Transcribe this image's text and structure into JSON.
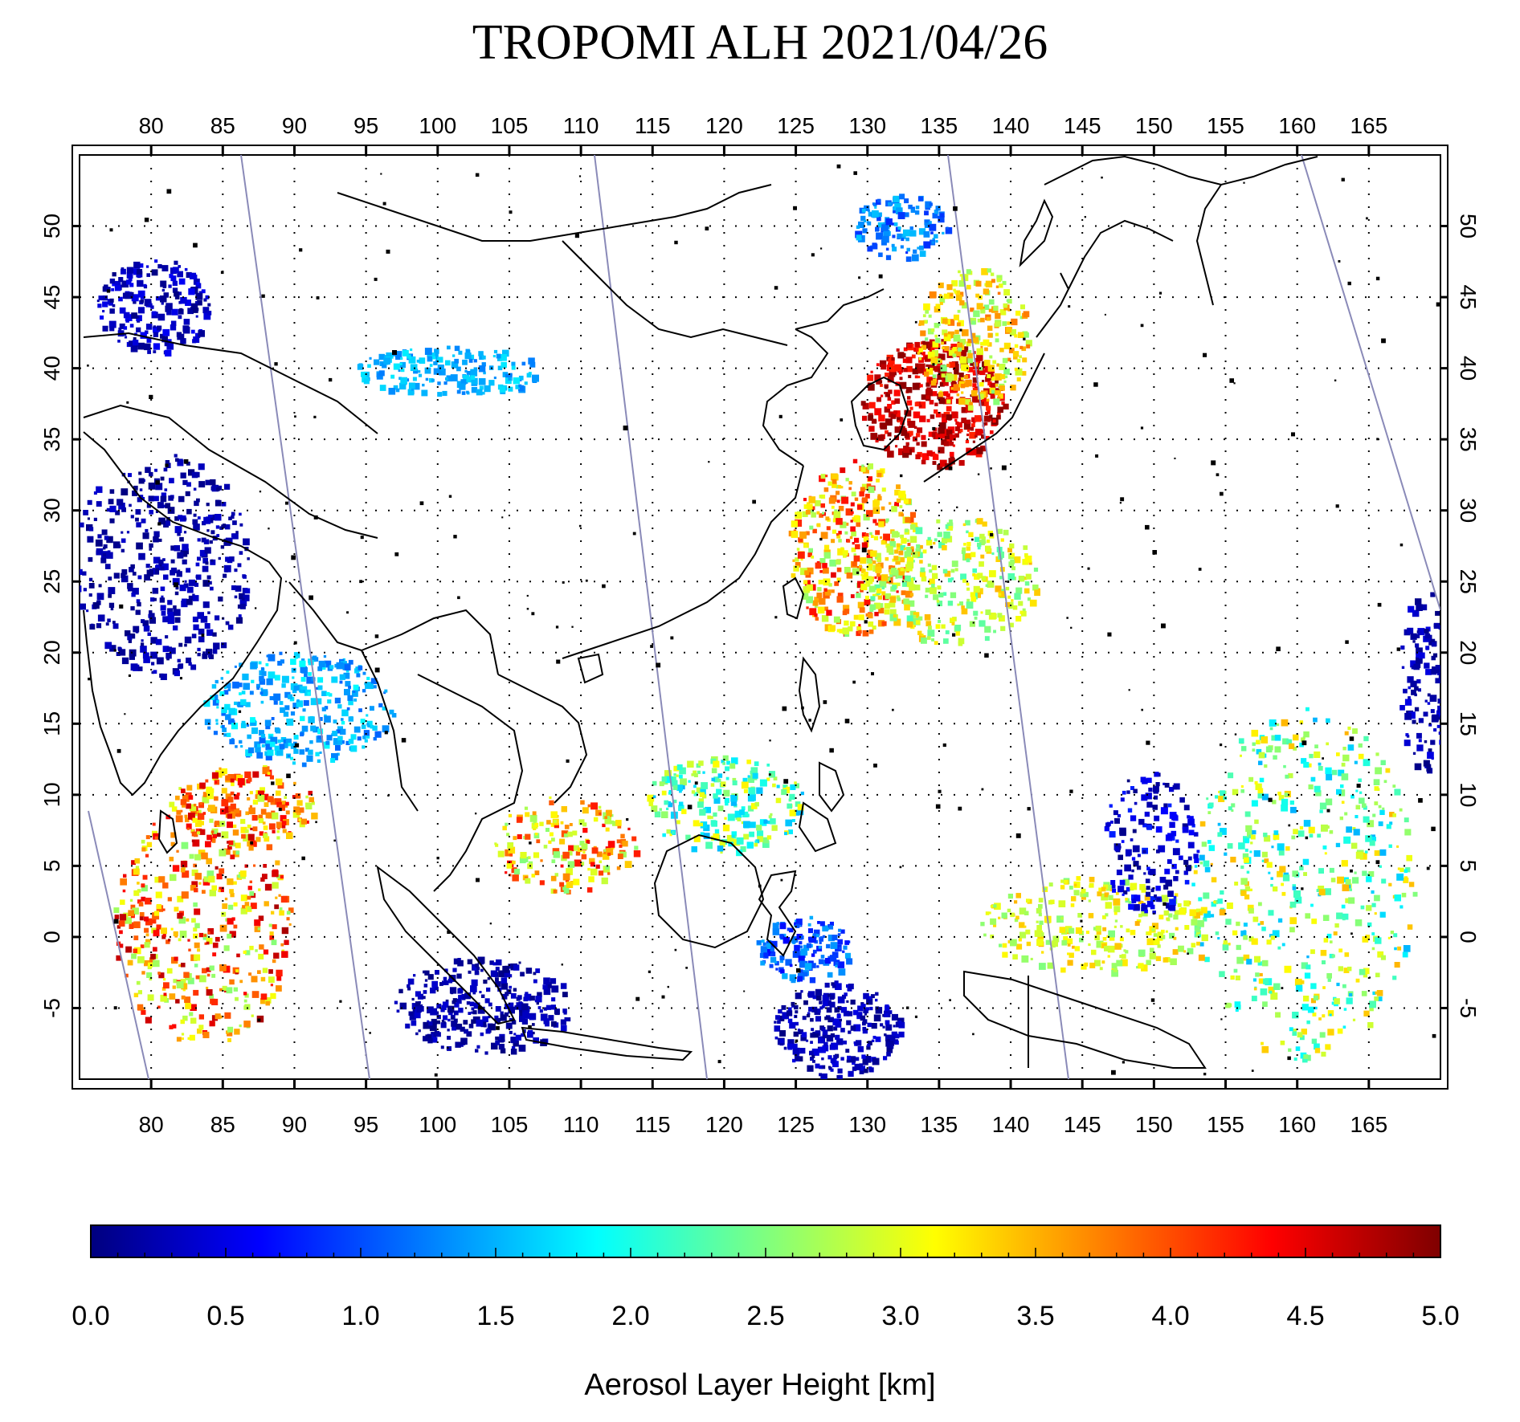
{
  "title": "TROPOMI ALH 2021/04/26",
  "map": {
    "lon_range": [
      75,
      170
    ],
    "lat_range": [
      -10,
      55
    ],
    "lon_ticks": [
      "80",
      "85",
      "90",
      "95",
      "100",
      "105",
      "110",
      "115",
      "120",
      "125",
      "130",
      "135",
      "140",
      "145",
      "150",
      "155",
      "160",
      "165"
    ],
    "lat_ticks": [
      "-5",
      "0",
      "5",
      "10",
      "15",
      "20",
      "25",
      "30",
      "35",
      "40",
      "45",
      "50"
    ],
    "graticule": "dotted 5-degree grid",
    "orbit_tracks": 5,
    "features": [
      {
        "region": "Korea / Yellow Sea / Sea of Japan",
        "height_km": "4.0-5.0"
      },
      {
        "region": "East China / East China Sea",
        "height_km": "2.5-4.5"
      },
      {
        "region": "Bay of Bengal",
        "height_km": "1.0-2.0"
      },
      {
        "region": "Northern India / Indo-Gangetic Plain",
        "height_km": "0.0-0.5"
      },
      {
        "region": "Sumatra / Java / Banda Sea",
        "height_km": "0.0-0.5"
      },
      {
        "region": "Western Pacific",
        "height_km": "1.5-3.5"
      }
    ]
  },
  "colorbar": {
    "label": "Aerosol Layer Height [km]",
    "min": 0.0,
    "max": 5.0,
    "ticks": [
      "0.0",
      "0.5",
      "1.0",
      "1.5",
      "2.0",
      "2.5",
      "3.0",
      "3.5",
      "4.0",
      "4.5",
      "5.0"
    ],
    "colors": [
      "#00007f",
      "#0000ff",
      "#007fff",
      "#00ffff",
      "#7fff7f",
      "#ffff00",
      "#ff7f00",
      "#ff0000",
      "#7f0000"
    ]
  }
}
